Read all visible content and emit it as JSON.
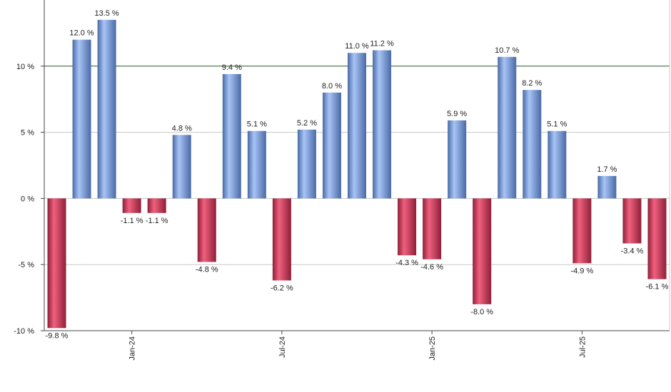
{
  "chart_data": {
    "type": "bar",
    "categories": [
      null,
      null,
      null,
      "Jan-24",
      null,
      null,
      null,
      null,
      null,
      "Jul-24",
      null,
      null,
      null,
      null,
      null,
      "Jan-25",
      null,
      null,
      null,
      null,
      null,
      "Jul-25",
      null,
      null,
      null
    ],
    "values": [
      -9.8,
      12.0,
      13.5,
      -1.1,
      -1.1,
      4.8,
      -4.8,
      9.4,
      5.1,
      -6.2,
      5.2,
      8.0,
      11.0,
      11.2,
      -4.3,
      -4.6,
      5.9,
      -8.0,
      10.7,
      8.2,
      5.1,
      -4.9,
      1.7,
      -3.4,
      -6.1
    ],
    "value_labels": [
      "-9.8 %",
      "12.0 %",
      "13.5 %",
      "-1.1 %",
      "-1.1 %",
      "4.8 %",
      "-4.8 %",
      "9.4 %",
      "5.1 %",
      "-6.2 %",
      "5.2 %",
      "8.0 %",
      "11.0 %",
      "11.2 %",
      "-4.3 %",
      "-4.6 %",
      "5.9 %",
      "-8.0 %",
      "10.7 %",
      "8.2 %",
      "5.1 %",
      "-4.9 %",
      "1.7 %",
      "-3.4 %",
      "-6.1 %"
    ],
    "positive_colors": [
      "#a8c4f6",
      "#4a6aa6"
    ],
    "negative_colors": [
      "#f0607e",
      "#8e2038"
    ],
    "ylim": [
      -10,
      15
    ],
    "yticks": [
      {
        "value": -10,
        "label": "-10 %"
      },
      {
        "value": -5,
        "label": "-5 %"
      },
      {
        "value": 0,
        "label": "0 %"
      },
      {
        "value": 5,
        "label": "5 %"
      },
      {
        "value": 10,
        "label": "10 %"
      }
    ],
    "grid": true,
    "reference_line": {
      "value": 10,
      "color": "#2e6b2e"
    }
  }
}
